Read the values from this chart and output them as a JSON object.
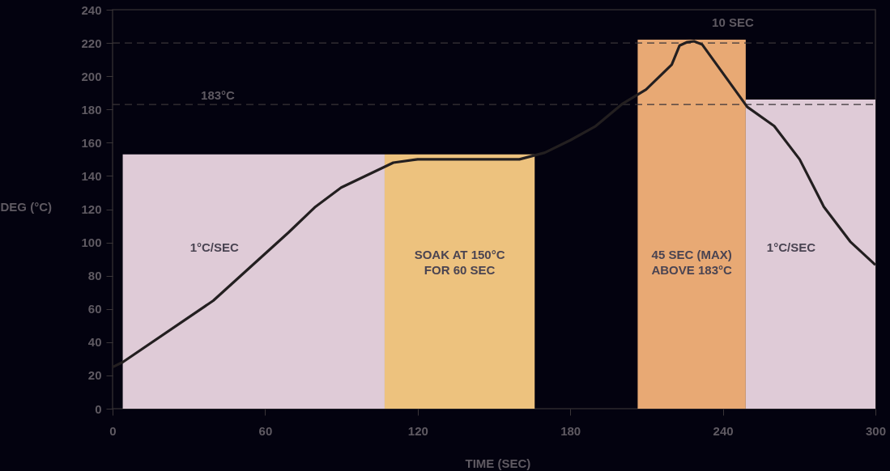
{
  "chart_data": {
    "type": "line",
    "xlabel": "TIME (SEC)",
    "ylabel": "DEG (°C)",
    "xlim": [
      0,
      300
    ],
    "ylim": [
      0,
      240
    ],
    "xticks": [
      0,
      60,
      120,
      180,
      240,
      300
    ],
    "yticks": [
      0,
      20,
      40,
      60,
      80,
      100,
      120,
      140,
      160,
      180,
      200,
      220,
      240
    ],
    "grid": false,
    "line_style": "solid",
    "marker": "none",
    "series": [
      {
        "type": "area",
        "color": "#dfcbd7",
        "x": [
          4,
          107
        ],
        "values": [
          153,
          153
        ]
      },
      {
        "type": "area",
        "color": "#edc27e",
        "x": [
          107,
          166
        ],
        "values": [
          153,
          153
        ]
      },
      {
        "type": "area",
        "color": "#e8a974",
        "x": [
          206.5,
          249
        ],
        "values": [
          222,
          222
        ]
      },
      {
        "type": "area",
        "color": "#dfcbd7",
        "x": [
          249,
          300
        ],
        "values": [
          186,
          186
        ]
      },
      {
        "color": "#231f20",
        "x": [
          0,
          4,
          39.6,
          69.2,
          79.8,
          89.9,
          110.4,
          120,
          160,
          170,
          180,
          190,
          200.6,
          209.8,
          219.9,
          223,
          226,
          228.7,
          231.9,
          249.6,
          260.2,
          270.2,
          279.7,
          290.1,
          300
        ],
        "values": [
          25,
          28,
          65,
          106,
          121.5,
          133,
          148,
          150,
          150,
          154,
          161.5,
          170,
          183.5,
          192,
          207,
          218.5,
          220.5,
          221,
          219,
          181.5,
          170,
          150,
          121.5,
          100.5,
          86.5
        ]
      }
    ],
    "ref_lines": [
      {
        "axis": "y",
        "value": 183,
        "label": "183°C",
        "line_style": "dashed",
        "color": "#3a3538"
      },
      {
        "axis": "y",
        "value": 220,
        "line_style": "dashed",
        "color": "#3a3538"
      }
    ],
    "annotations": [
      "1°C/SEC",
      "SOAK AT 150°C\nFOR 60 SEC",
      "45 SEC (MAX)\nABOVE 183°C",
      "1°C/SEC",
      "10 SEC"
    ]
  }
}
